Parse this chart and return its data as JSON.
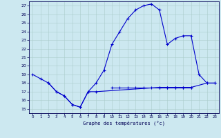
{
  "title": "Graphe des températures (°c)",
  "line_color": "#0000cc",
  "bg_color": "#cce8f0",
  "grid_color": "#aacccc",
  "xlim": [
    -0.5,
    23.5
  ],
  "ylim": [
    14.5,
    27.5
  ],
  "yticks": [
    15,
    16,
    17,
    18,
    19,
    20,
    21,
    22,
    23,
    24,
    25,
    26,
    27
  ],
  "xticks": [
    0,
    1,
    2,
    3,
    4,
    5,
    6,
    7,
    8,
    9,
    10,
    11,
    12,
    13,
    14,
    15,
    16,
    17,
    18,
    19,
    20,
    21,
    22,
    23
  ],
  "curve1_x": [
    0,
    1,
    2,
    3,
    4,
    5,
    6,
    7,
    8,
    9,
    10,
    11,
    12,
    13,
    14,
    15,
    16,
    17,
    18,
    19,
    20,
    21,
    22,
    23
  ],
  "curve1_y": [
    19.0,
    18.5,
    18.0,
    17.0,
    16.5,
    15.5,
    15.2,
    17.0,
    18.0,
    19.5,
    22.5,
    24.0,
    25.5,
    26.5,
    27.0,
    27.2,
    26.5,
    22.5,
    23.2,
    23.5,
    23.5,
    19.0,
    18.0,
    18.0
  ],
  "curve2_x": [
    2,
    3,
    4,
    5,
    6,
    7,
    8,
    16,
    17,
    18,
    19,
    20,
    22,
    23
  ],
  "curve2_y": [
    18.0,
    17.0,
    16.5,
    15.5,
    15.2,
    17.0,
    17.0,
    17.5,
    17.5,
    17.5,
    17.5,
    17.5,
    18.0,
    18.0
  ],
  "curve3_x": [
    10,
    11,
    12,
    13,
    14,
    15,
    16,
    17,
    18,
    19,
    20
  ],
  "curve3_y": [
    17.5,
    17.5,
    17.5,
    17.5,
    17.5,
    17.5,
    17.5,
    17.5,
    17.5,
    17.5,
    17.5
  ]
}
